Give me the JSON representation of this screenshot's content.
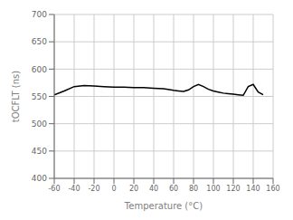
{
  "chart_data": {
    "type": "line",
    "xlabel": "Temperature (°C)",
    "ylabel": "tOCFLT (ns)",
    "x": [
      -60,
      -50,
      -40,
      -30,
      -20,
      -10,
      0,
      10,
      20,
      30,
      40,
      50,
      60,
      65,
      70,
      75,
      80,
      85,
      90,
      95,
      100,
      105,
      110,
      115,
      120,
      125,
      130,
      135,
      140,
      145,
      150
    ],
    "values": [
      553,
      560,
      568,
      570,
      569,
      568,
      567,
      567,
      566,
      566,
      565,
      564,
      561,
      560,
      559,
      562,
      568,
      572,
      568,
      563,
      560,
      558,
      556,
      555,
      554,
      553,
      552,
      568,
      572,
      558,
      553
    ],
    "color": "#000000",
    "xlim": [
      -60,
      160
    ],
    "ylim": [
      400,
      700
    ],
    "xticks": [
      -60,
      -40,
      -20,
      0,
      20,
      40,
      60,
      80,
      100,
      120,
      140,
      160
    ],
    "yticks": [
      400,
      450,
      500,
      550,
      600,
      650,
      700
    ],
    "grid": true
  }
}
